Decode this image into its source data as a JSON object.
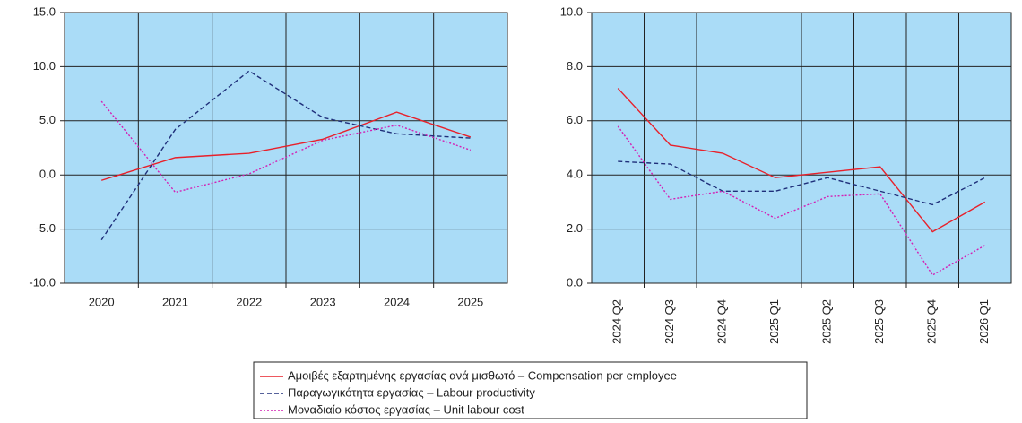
{
  "chart_data": [
    {
      "type": "line",
      "categories": [
        "2020",
        "2021",
        "2022",
        "2023",
        "2024",
        "2025"
      ],
      "ylim": [
        -10,
        15
      ],
      "yticks": [
        {
          "value": -10,
          "label": "-10.0"
        },
        {
          "value": -5,
          "label": "-5.0"
        },
        {
          "value": 0,
          "label": "0.0"
        },
        {
          "value": 5,
          "label": "5.0"
        },
        {
          "value": 10,
          "label": "10.0"
        },
        {
          "value": 15,
          "label": "15.0"
        }
      ],
      "grid": true,
      "series": [
        {
          "name": "Αμοιβές εξαρτημένης εργασίας ανά μισθωτό – Compensation per employee",
          "color": "#e8202a",
          "dash": "solid",
          "values": [
            -0.5,
            1.6,
            2.0,
            3.3,
            5.8,
            3.5
          ]
        },
        {
          "name": "Παραγωγικότητα εργασίας – Labour productivity",
          "color": "#1f2f7a",
          "dash": "dashed",
          "values": [
            -6.0,
            4.2,
            9.6,
            5.3,
            3.8,
            3.4
          ]
        },
        {
          "name": "Μοναδιαίο κόστος εργασίας – Unit labour cost",
          "color": "#d41fb4",
          "dash": "dotted",
          "values": [
            6.8,
            -1.6,
            0.1,
            3.2,
            4.6,
            2.3
          ]
        }
      ]
    },
    {
      "type": "line",
      "categories": [
        "2024 Q2",
        "2024 Q3",
        "2024 Q4",
        "2025 Q1",
        "2025 Q2",
        "2025 Q3",
        "2025 Q4",
        "2026 Q1"
      ],
      "ylim": [
        0,
        10
      ],
      "yticks": [
        {
          "value": 0,
          "label": "0.0"
        },
        {
          "value": 2,
          "label": "2.0"
        },
        {
          "value": 4,
          "label": "4.0"
        },
        {
          "value": 6,
          "label": "6.0"
        },
        {
          "value": 8,
          "label": "8.0"
        },
        {
          "value": 10,
          "label": "10.0"
        }
      ],
      "grid": true,
      "rotate_labels": true,
      "series": [
        {
          "color": "#e8202a",
          "dash": "solid",
          "values": [
            7.2,
            5.1,
            4.8,
            3.9,
            4.1,
            4.3,
            1.9,
            3.0
          ]
        },
        {
          "color": "#1f2f7a",
          "dash": "dashed",
          "values": [
            4.5,
            4.4,
            3.4,
            3.4,
            3.9,
            3.4,
            2.9,
            3.9
          ]
        },
        {
          "color": "#d41fb4",
          "dash": "dotted",
          "values": [
            5.8,
            3.1,
            3.4,
            2.4,
            3.2,
            3.3,
            0.3,
            1.4
          ]
        }
      ]
    }
  ]
}
